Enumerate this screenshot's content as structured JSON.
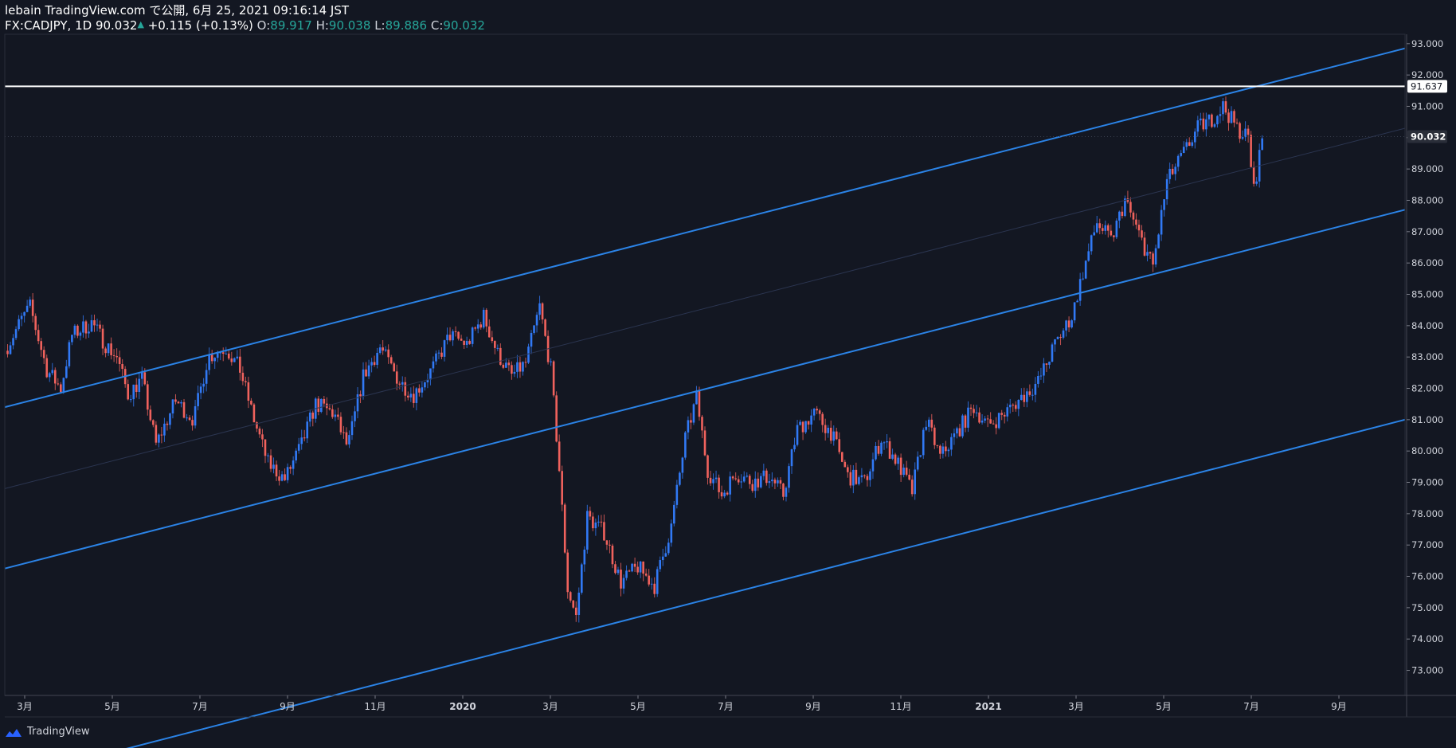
{
  "header": {
    "line1": "lebain TradingView.com で公開, 6月 25, 2021 09:16:14 JST",
    "symbol": "FX:CADJPY, 1D 90.032",
    "arrow": "▲",
    "change": "+0.115 (+0.13%)",
    "o_label": "O:",
    "o_value": "89.917",
    "h_label": "H:",
    "h_value": "90.038",
    "l_label": "L:",
    "l_value": "89.886",
    "c_label": "C:",
    "c_value": "90.032"
  },
  "footer": {
    "brand": "TradingView"
  },
  "colors": {
    "background": "#131722",
    "up": "#3179f5",
    "down": "#f0625d",
    "channel": "#2b83e6",
    "horizontal": "#ffffff",
    "grid_text": "#d1d4dc"
  },
  "chart_data": {
    "type": "candlestick",
    "y_ticks": [
      "93.000",
      "92.000",
      "91.000",
      "90.000",
      "89.000",
      "88.000",
      "87.000",
      "86.000",
      "85.000",
      "84.000",
      "83.000",
      "82.000",
      "81.000",
      "80.000",
      "79.000",
      "78.000",
      "77.000",
      "76.000",
      "75.000",
      "74.000",
      "73.000"
    ],
    "x_ticks": [
      "3月",
      "5月",
      "7月",
      "9月",
      "11月",
      "2020",
      "3月",
      "5月",
      "7月",
      "9月",
      "11月",
      "2021",
      "3月",
      "5月",
      "7月",
      "9月"
    ],
    "x_ticks_bold": [
      false,
      false,
      false,
      false,
      false,
      true,
      false,
      false,
      false,
      false,
      false,
      true,
      false,
      false,
      false,
      false
    ],
    "ylim": [
      72.2,
      93.3
    ],
    "horizontal_level": {
      "value": 91.637,
      "label": "91.637"
    },
    "last_price": {
      "value": 90.032,
      "label": "90.032"
    },
    "channel": {
      "lines": [
        {
          "name": "",
          "start": [
            0,
            81.4
          ],
          "end": [
            1,
            92.85
          ]
        },
        {
          "name": "",
          "start": [
            0,
            76.25
          ],
          "end": [
            1,
            87.7
          ]
        },
        {
          "name": "",
          "start": [
            0,
            69.5
          ],
          "end": [
            1,
            81.0
          ]
        }
      ],
      "midline": {
        "start": [
          0,
          78.8
        ],
        "end": [
          1,
          90.3
        ]
      }
    },
    "price_path": [
      [
        0.0,
        83.2
      ],
      [
        0.012,
        84.2
      ],
      [
        0.018,
        84.6
      ],
      [
        0.03,
        82.6
      ],
      [
        0.04,
        82.0
      ],
      [
        0.048,
        83.7
      ],
      [
        0.062,
        84.1
      ],
      [
        0.072,
        83.4
      ],
      [
        0.08,
        83.0
      ],
      [
        0.088,
        81.8
      ],
      [
        0.098,
        82.3
      ],
      [
        0.108,
        80.2
      ],
      [
        0.122,
        81.6
      ],
      [
        0.135,
        81.0
      ],
      [
        0.145,
        83.0
      ],
      [
        0.158,
        83.3
      ],
      [
        0.168,
        82.6
      ],
      [
        0.178,
        81.0
      ],
      [
        0.188,
        79.6
      ],
      [
        0.2,
        79.1
      ],
      [
        0.212,
        80.2
      ],
      [
        0.222,
        81.5
      ],
      [
        0.235,
        81.2
      ],
      [
        0.245,
        80.1
      ],
      [
        0.256,
        82.4
      ],
      [
        0.268,
        83.3
      ],
      [
        0.282,
        82.2
      ],
      [
        0.292,
        81.8
      ],
      [
        0.305,
        82.6
      ],
      [
        0.318,
        83.7
      ],
      [
        0.33,
        83.4
      ],
      [
        0.342,
        84.3
      ],
      [
        0.352,
        83.1
      ],
      [
        0.362,
        82.4
      ],
      [
        0.372,
        82.8
      ],
      [
        0.382,
        84.6
      ],
      [
        0.39,
        82.6
      ],
      [
        0.396,
        79.4
      ],
      [
        0.402,
        75.6
      ],
      [
        0.408,
        74.7
      ],
      [
        0.416,
        77.9
      ],
      [
        0.428,
        77.4
      ],
      [
        0.44,
        75.8
      ],
      [
        0.452,
        76.3
      ],
      [
        0.464,
        75.7
      ],
      [
        0.476,
        77.6
      ],
      [
        0.486,
        80.4
      ],
      [
        0.494,
        81.7
      ],
      [
        0.502,
        79.4
      ],
      [
        0.512,
        78.6
      ],
      [
        0.522,
        79.3
      ],
      [
        0.534,
        79.0
      ],
      [
        0.546,
        79.2
      ],
      [
        0.556,
        78.6
      ],
      [
        0.566,
        80.7
      ],
      [
        0.578,
        81.2
      ],
      [
        0.59,
        80.6
      ],
      [
        0.602,
        79.2
      ],
      [
        0.614,
        79.0
      ],
      [
        0.626,
        80.4
      ],
      [
        0.638,
        79.6
      ],
      [
        0.648,
        78.7
      ],
      [
        0.658,
        81.0
      ],
      [
        0.668,
        79.8
      ],
      [
        0.68,
        80.6
      ],
      [
        0.692,
        81.4
      ],
      [
        0.702,
        80.8
      ],
      [
        0.714,
        81.2
      ],
      [
        0.726,
        81.7
      ],
      [
        0.738,
        82.2
      ],
      [
        0.75,
        83.4
      ],
      [
        0.762,
        84.3
      ],
      [
        0.77,
        85.7
      ],
      [
        0.78,
        87.3
      ],
      [
        0.79,
        86.7
      ],
      [
        0.8,
        88.0
      ],
      [
        0.81,
        86.9
      ],
      [
        0.82,
        85.9
      ],
      [
        0.83,
        88.6
      ],
      [
        0.842,
        89.5
      ],
      [
        0.852,
        90.3
      ],
      [
        0.862,
        90.6
      ],
      [
        0.87,
        91.0
      ],
      [
        0.88,
        90.3
      ],
      [
        0.888,
        90.0
      ],
      [
        0.892,
        88.3
      ],
      [
        0.898,
        90.0
      ]
    ]
  }
}
